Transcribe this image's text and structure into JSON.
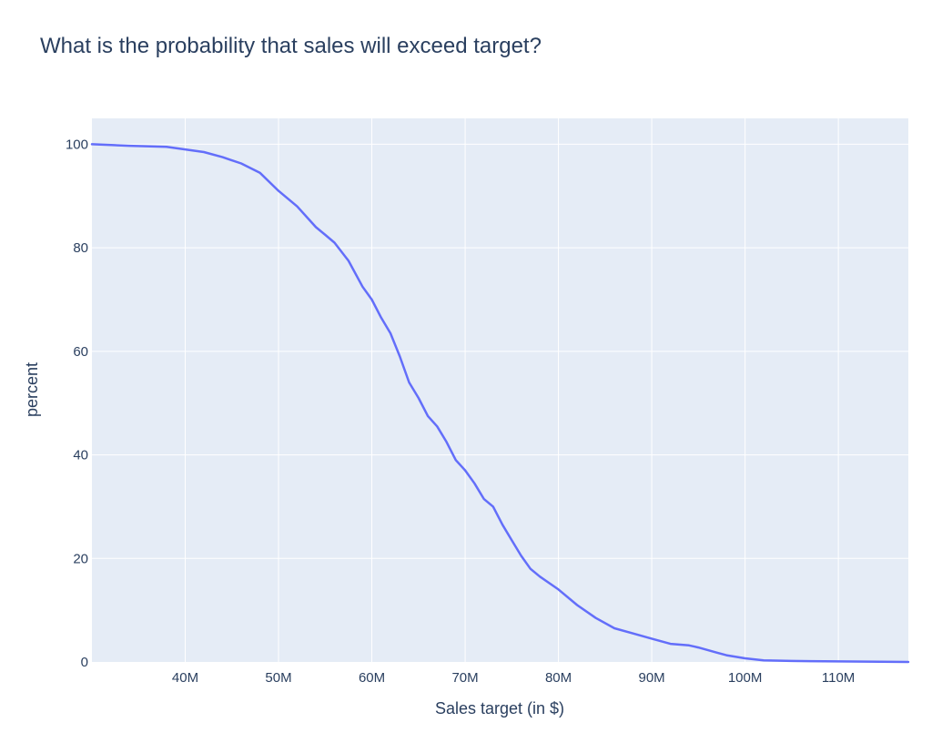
{
  "chart_data": {
    "type": "line",
    "title": "What is the probability that sales will exceed target?",
    "xlabel": "Sales target (in $)",
    "ylabel": "percent",
    "xlim": [
      30000000,
      117500000
    ],
    "ylim": [
      0,
      105
    ],
    "x_ticks": [
      {
        "value": 40000000,
        "label": "40M"
      },
      {
        "value": 50000000,
        "label": "50M"
      },
      {
        "value": 60000000,
        "label": "60M"
      },
      {
        "value": 70000000,
        "label": "70M"
      },
      {
        "value": 80000000,
        "label": "80M"
      },
      {
        "value": 90000000,
        "label": "90M"
      },
      {
        "value": 100000000,
        "label": "100M"
      },
      {
        "value": 110000000,
        "label": "110M"
      }
    ],
    "y_ticks": [
      {
        "value": 0,
        "label": "0"
      },
      {
        "value": 20,
        "label": "20"
      },
      {
        "value": 40,
        "label": "40"
      },
      {
        "value": 60,
        "label": "60"
      },
      {
        "value": 80,
        "label": "80"
      },
      {
        "value": 100,
        "label": "100"
      }
    ],
    "grid": true,
    "colors": {
      "line": "#636efa",
      "plot_bg": "#e5ecf6",
      "grid": "#ffffff",
      "text": "#2a3f5f"
    },
    "series": [
      {
        "x": [
          30000000,
          34000000,
          38000000,
          40000000,
          42000000,
          44000000,
          46000000,
          48000000,
          50000000,
          52000000,
          54000000,
          55000000,
          56000000,
          57500000,
          59000000,
          60000000,
          61000000,
          62000000,
          63000000,
          64000000,
          65000000,
          66000000,
          67000000,
          68000000,
          69000000,
          70000000,
          71000000,
          72000000,
          73000000,
          74000000,
          75000000,
          76000000,
          77000000,
          78000000,
          80000000,
          82000000,
          84000000,
          86000000,
          88000000,
          90000000,
          92000000,
          94000000,
          95000000,
          97000000,
          98000000,
          100000000,
          102000000,
          105000000,
          110000000,
          117500000
        ],
        "y": [
          100,
          99.7,
          99.5,
          99.0,
          98.5,
          97.5,
          96.3,
          94.5,
          91.0,
          88.0,
          84.0,
          82.5,
          81.0,
          77.5,
          72.5,
          70.0,
          66.5,
          63.5,
          59.0,
          54.0,
          51.0,
          47.5,
          45.5,
          42.5,
          39.0,
          37.0,
          34.5,
          31.5,
          30.0,
          26.5,
          23.5,
          20.5,
          18.0,
          16.5,
          14.0,
          11.0,
          8.5,
          6.5,
          5.5,
          4.5,
          3.5,
          3.2,
          2.8,
          1.8,
          1.3,
          0.7,
          0.3,
          0.2,
          0.1,
          0.0
        ]
      }
    ]
  }
}
